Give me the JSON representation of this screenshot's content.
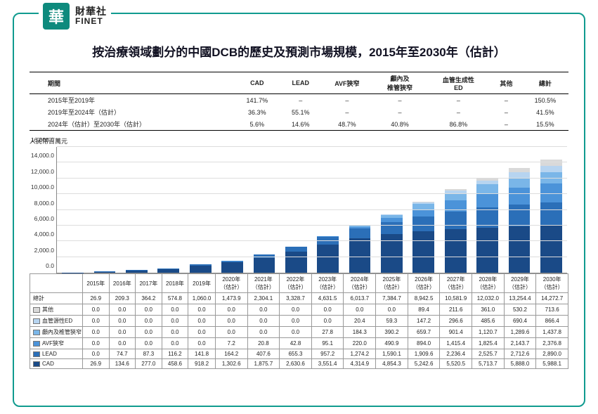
{
  "logo": {
    "char": "華",
    "cn": "財華社",
    "en": "FINET"
  },
  "title": "按治療領域劃分的中國DCB的歷史及預測市場規模，2015年至2030年（估計）",
  "growth_table": {
    "headers": [
      "期間",
      "CAD",
      "LEAD",
      "AVF狹窄",
      "顱內及\n椎管狹窄",
      "血管生成性\nED",
      "其他",
      "總計"
    ],
    "rows": [
      {
        "period": "2015年至2019年",
        "cells": [
          "141.7%",
          "–",
          "–",
          "–",
          "–",
          "–",
          "150.5%"
        ]
      },
      {
        "period": "2019年至2024年（估計）",
        "cells": [
          "36.3%",
          "55.1%",
          "–",
          "–",
          "–",
          "–",
          "41.5%"
        ]
      },
      {
        "period": "2024年（估計）至2030年（估計）",
        "cells": [
          "5.6%",
          "14.6%",
          "48.7%",
          "40.8%",
          "86.8%",
          "–",
          "15.5%"
        ]
      }
    ]
  },
  "chart": {
    "y_label": "人民幣百萬元",
    "ymax": 16000,
    "yticks": [
      0,
      2000,
      4000,
      6000,
      8000,
      10000,
      12000,
      14000,
      16000
    ],
    "ytick_labels": [
      "0.0",
      "2,000.0",
      "4,000.0",
      "6,000.0",
      "8,000.0",
      "10,000.0",
      "12,000.0",
      "14,000.0",
      "16,000.0"
    ],
    "background": "#ffffff",
    "grid_color": "#dddddd",
    "axis_color": "#888888",
    "bar_width": 0.68
  },
  "years": [
    "2015年",
    "2016年",
    "2017年",
    "2018年",
    "2019年",
    "2020年\n（估計）",
    "2021年\n（估計）",
    "2022年\n（估計）",
    "2023年\n（估計）",
    "2024年\n（估計）",
    "2025年\n（估計）",
    "2026年\n（估計）",
    "2027年\n（估計）",
    "2028年\n（估計）",
    "2029年\n（估計）",
    "2030年\n（估計）"
  ],
  "series": [
    {
      "key": "其他",
      "name": "其他",
      "color": "#d9d9d9"
    },
    {
      "key": "血管源性ED",
      "name": "血管源性ED",
      "color": "#b7d4f0"
    },
    {
      "key": "顱內及椎管狹窄",
      "name": "顱內及椎管狹窄",
      "color": "#7ab6e8"
    },
    {
      "key": "AVF狹窄",
      "name": "AVF狹窄",
      "color": "#4b93d9"
    },
    {
      "key": "LEAD",
      "name": "LEAD",
      "color": "#2b6fb8"
    },
    {
      "key": "CAD",
      "name": "CAD",
      "color": "#1a4a87"
    }
  ],
  "total_label": "總計",
  "data": {
    "總計": [
      "26.9",
      "209.3",
      "364.2",
      "574.8",
      "1,060.0",
      "1,473.9",
      "2,304.1",
      "3,328.7",
      "4,631.5",
      "6,013.7",
      "7,384.7",
      "8,942.5",
      "10,581.9",
      "12,032.0",
      "13,254.4",
      "14,272.7"
    ],
    "其他": [
      "0.0",
      "0.0",
      "0.0",
      "0.0",
      "0.0",
      "0.0",
      "0.0",
      "0.0",
      "0.0",
      "0.0",
      "0.0",
      "89.4",
      "211.6",
      "361.0",
      "530.2",
      "713.6"
    ],
    "血管源性ED": [
      "0.0",
      "0.0",
      "0.0",
      "0.0",
      "0.0",
      "0.0",
      "0.0",
      "0.0",
      "0.0",
      "20.4",
      "59.3",
      "147.2",
      "296.6",
      "485.6",
      "690.4",
      "866.4"
    ],
    "顱內及椎管狹窄": [
      "0.0",
      "0.0",
      "0.0",
      "0.0",
      "0.0",
      "0.0",
      "0.0",
      "0.0",
      "27.8",
      "184.3",
      "390.2",
      "659.7",
      "901.4",
      "1,120.7",
      "1,289.6",
      "1,437.8"
    ],
    "AVF狹窄": [
      "0.0",
      "0.0",
      "0.0",
      "0.0",
      "0.0",
      "7.2",
      "20.8",
      "42.8",
      "95.1",
      "220.0",
      "490.9",
      "894.0",
      "1,415.4",
      "1,825.4",
      "2,143.7",
      "2,376.8"
    ],
    "LEAD": [
      "0.0",
      "74.7",
      "87.3",
      "116.2",
      "141.8",
      "164.2",
      "407.6",
      "655.3",
      "957.2",
      "1,274.2",
      "1,590.1",
      "1,909.6",
      "2,236.4",
      "2,525.7",
      "2,712.6",
      "2,890.0"
    ],
    "CAD": [
      "26.9",
      "134.6",
      "277.0",
      "458.6",
      "918.2",
      "1,302.6",
      "1,875.7",
      "2,630.6",
      "3,551.4",
      "4,314.9",
      "4,854.3",
      "5,242.6",
      "5,520.5",
      "5,713.7",
      "5,888.0",
      "5,988.1"
    ]
  },
  "fontsize": {
    "title": 17,
    "table": 9,
    "data_table": 8,
    "ytick": 8.5
  }
}
